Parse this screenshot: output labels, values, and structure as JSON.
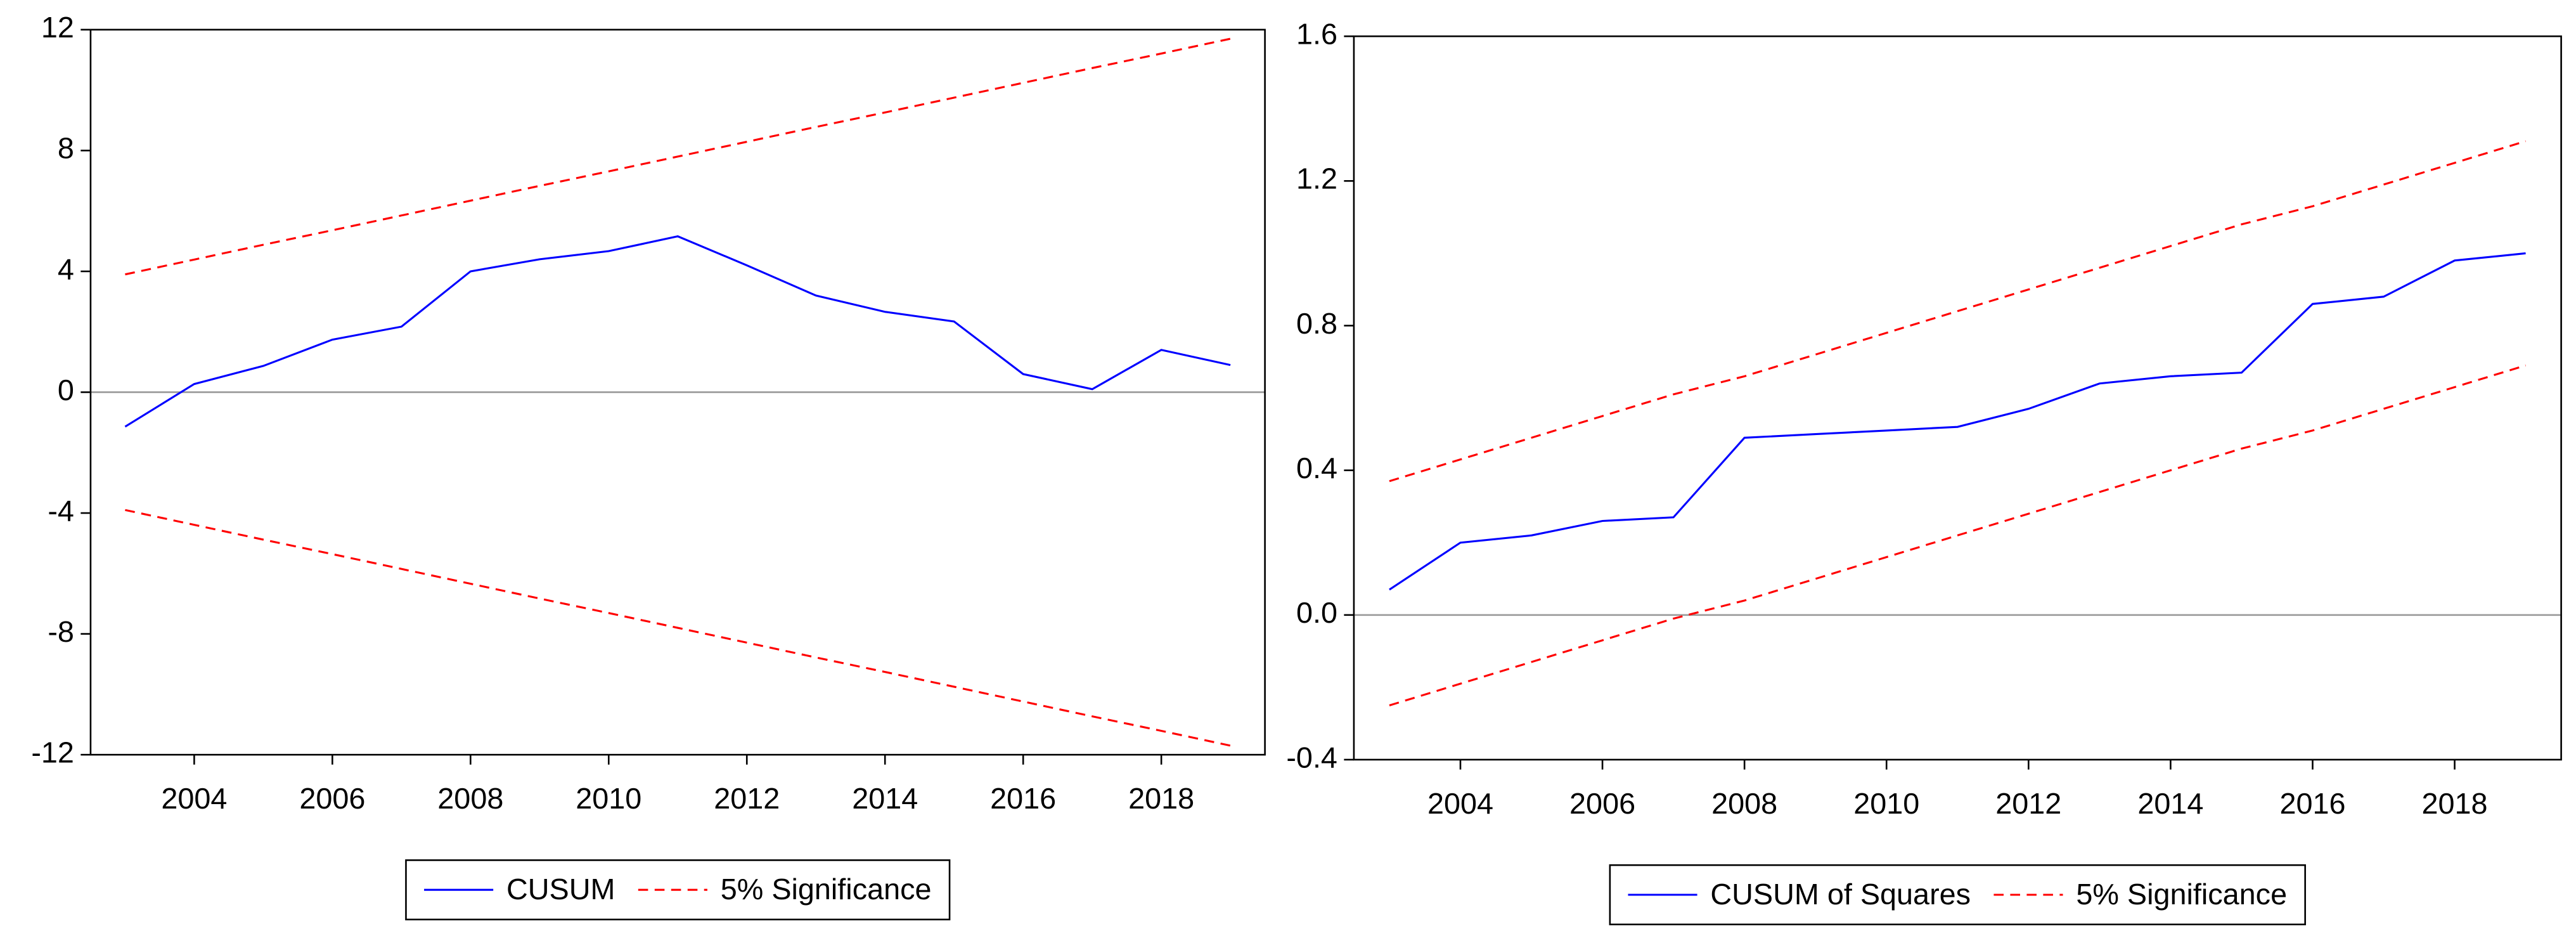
{
  "chart_data": [
    {
      "type": "line",
      "x": [
        2003,
        2004,
        2005,
        2006,
        2007,
        2008,
        2009,
        2010,
        2011,
        2012,
        2013,
        2014,
        2015,
        2016,
        2017,
        2018,
        2019
      ],
      "xlim": [
        2002.5,
        2019.5
      ],
      "xticks": [
        2004,
        2006,
        2008,
        2010,
        2012,
        2014,
        2016,
        2018
      ],
      "ylim": [
        -12,
        12
      ],
      "yticks": [
        -12,
        -8,
        -4,
        0,
        4,
        8,
        12
      ],
      "series": [
        {
          "name": "CUSUM",
          "color": "#0000ff",
          "values": [
            -1.14,
            0.27,
            0.87,
            1.74,
            2.17,
            4.0,
            4.4,
            4.67,
            5.16,
            4.2,
            3.2,
            2.66,
            2.34,
            0.6,
            0.1,
            1.4,
            0.9
          ]
        }
      ],
      "bounds": {
        "name": "5% Significance",
        "color": "#ff0000",
        "upper": [
          3.9,
          4.39,
          4.88,
          5.36,
          5.85,
          6.34,
          6.83,
          7.31,
          7.8,
          8.29,
          8.78,
          9.26,
          9.75,
          10.24,
          10.73,
          11.21,
          11.7
        ],
        "lower": [
          -3.9,
          -4.39,
          -4.88,
          -5.36,
          -5.85,
          -6.34,
          -6.83,
          -7.31,
          -7.8,
          -8.29,
          -8.78,
          -9.26,
          -9.75,
          -10.24,
          -10.73,
          -11.21,
          -11.7
        ]
      },
      "zero_line": true
    },
    {
      "type": "line",
      "x": [
        2003,
        2004,
        2005,
        2006,
        2007,
        2008,
        2009,
        2010,
        2011,
        2012,
        2013,
        2014,
        2015,
        2016,
        2017,
        2018,
        2019
      ],
      "xlim": [
        2002.5,
        2019.5
      ],
      "xticks": [
        2004,
        2006,
        2008,
        2010,
        2012,
        2014,
        2016,
        2018
      ],
      "ylim": [
        -0.4,
        1.6
      ],
      "yticks": [
        -0.4,
        {
          "value": 0,
          "label": "0.0"
        },
        0.4,
        0.8,
        1.2,
        1.6
      ],
      "series": [
        {
          "name": "CUSUM of Squares",
          "color": "#0000ff",
          "values": [
            0.07,
            0.2,
            0.22,
            0.26,
            0.27,
            0.49,
            0.5,
            0.51,
            0.52,
            0.57,
            0.64,
            0.66,
            0.67,
            0.86,
            0.88,
            0.98,
            1.0
          ]
        }
      ],
      "bounds": {
        "name": "5% Significance",
        "color": "#ff0000",
        "upper": [
          0.37,
          0.43,
          0.49,
          0.55,
          0.61,
          0.66,
          0.72,
          0.78,
          0.84,
          0.9,
          0.96,
          1.02,
          1.08,
          1.13,
          1.19,
          1.25,
          1.31
        ],
        "lower": [
          -0.25,
          -0.19,
          -0.13,
          -0.07,
          -0.01,
          0.04,
          0.1,
          0.16,
          0.22,
          0.28,
          0.34,
          0.4,
          0.46,
          0.51,
          0.57,
          0.63,
          0.69
        ]
      },
      "zero_line": true
    }
  ]
}
